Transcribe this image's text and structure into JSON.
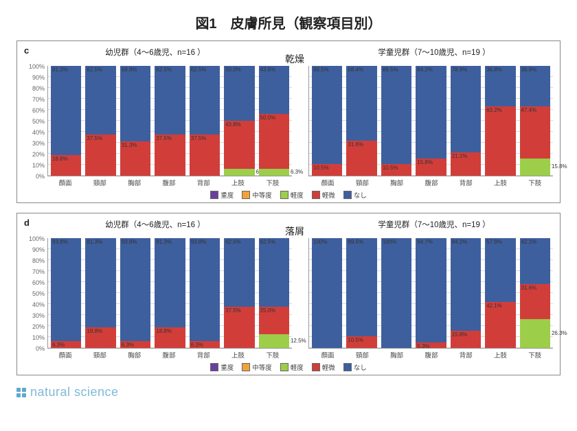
{
  "title": "図1　皮膚所見（観察項目別）",
  "footer": "natural science",
  "colors": {
    "severe": "#6b3fa0",
    "moderate": "#f2a23a",
    "mild": "#9cce4a",
    "slight": "#d13e3a",
    "none": "#3e5f9e",
    "grid": "#d8d8d8",
    "border": "#888888",
    "bg": "#ffffff"
  },
  "legend": [
    {
      "key": "severe",
      "label": "重度"
    },
    {
      "key": "moderate",
      "label": "中等度"
    },
    {
      "key": "mild",
      "label": "軽度"
    },
    {
      "key": "slight",
      "label": "軽微"
    },
    {
      "key": "none",
      "label": "なし"
    }
  ],
  "axis": {
    "ylim": [
      0,
      100
    ],
    "ystep": 10,
    "ylabel_suffix": "%",
    "tick_fontsize": 9
  },
  "categories_jp": [
    "顔面",
    "頸部",
    "胸部",
    "腹部",
    "背部",
    "上肢",
    "下肢"
  ],
  "panels": [
    {
      "id": "c",
      "center": "乾燥",
      "left_title": "幼児群（4～6歳児、n=16 ）",
      "right_title": "学童児群（7～10歳児、n=19 ）",
      "left": [
        {
          "cat": "顔面",
          "segs": [
            {
              "k": "slight",
              "v": 18.8,
              "lb": "18.8%",
              "pos": "inside-top"
            },
            {
              "k": "none",
              "v": 81.3,
              "lb": "81.3%",
              "pos": "inside-top"
            }
          ]
        },
        {
          "cat": "頸部",
          "segs": [
            {
              "k": "slight",
              "v": 37.5,
              "lb": "37.5%",
              "pos": "inside-top"
            },
            {
              "k": "none",
              "v": 62.5,
              "lb": "62.5%",
              "pos": "inside-top"
            }
          ]
        },
        {
          "cat": "胸部",
          "segs": [
            {
              "k": "slight",
              "v": 31.3,
              "lb": "31.3%",
              "pos": "inside-top"
            },
            {
              "k": "none",
              "v": 68.8,
              "lb": "68.8%",
              "pos": "inside-top"
            }
          ]
        },
        {
          "cat": "腹部",
          "segs": [
            {
              "k": "slight",
              "v": 37.5,
              "lb": "37.5%",
              "pos": "inside-top"
            },
            {
              "k": "none",
              "v": 62.5,
              "lb": "62.5%",
              "pos": "inside-top"
            }
          ]
        },
        {
          "cat": "背部",
          "segs": [
            {
              "k": "slight",
              "v": 37.5,
              "lb": "37.5%",
              "pos": "inside-top"
            },
            {
              "k": "none",
              "v": 62.5,
              "lb": "62.5%",
              "pos": "inside-top"
            }
          ]
        },
        {
          "cat": "上肢",
          "segs": [
            {
              "k": "mild",
              "v": 6.3,
              "lb": "6.3%",
              "pos": "right"
            },
            {
              "k": "slight",
              "v": 43.8,
              "lb": "43.8%",
              "pos": "inside-top"
            },
            {
              "k": "none",
              "v": 50.0,
              "lb": "50.0%",
              "pos": "inside-top"
            }
          ]
        },
        {
          "cat": "下肢",
          "segs": [
            {
              "k": "mild",
              "v": 6.3,
              "lb": "6.3%",
              "pos": "right"
            },
            {
              "k": "slight",
              "v": 50.0,
              "lb": "50.0%",
              "pos": "inside-top"
            },
            {
              "k": "none",
              "v": 43.8,
              "lb": "43.8%",
              "pos": "inside-top"
            }
          ]
        }
      ],
      "right": [
        {
          "cat": "顔面",
          "segs": [
            {
              "k": "slight",
              "v": 10.5,
              "lb": "10.5%",
              "pos": "inside-top"
            },
            {
              "k": "none",
              "v": 89.5,
              "lb": "89.5%",
              "pos": "inside-top"
            }
          ]
        },
        {
          "cat": "頸部",
          "segs": [
            {
              "k": "slight",
              "v": 31.6,
              "lb": "31.6%",
              "pos": "inside-top"
            },
            {
              "k": "none",
              "v": 68.4,
              "lb": "68.4%",
              "pos": "inside-top"
            }
          ]
        },
        {
          "cat": "胸部",
          "segs": [
            {
              "k": "slight",
              "v": 10.5,
              "lb": "10.5%",
              "pos": "inside-top"
            },
            {
              "k": "none",
              "v": 89.5,
              "lb": "89.5%",
              "pos": "inside-top"
            }
          ]
        },
        {
          "cat": "腹部",
          "segs": [
            {
              "k": "slight",
              "v": 15.8,
              "lb": "15.8%",
              "pos": "inside-top"
            },
            {
              "k": "none",
              "v": 84.2,
              "lb": "84.2%",
              "pos": "inside-top"
            }
          ]
        },
        {
          "cat": "背部",
          "segs": [
            {
              "k": "slight",
              "v": 21.1,
              "lb": "21.1%",
              "pos": "inside-top"
            },
            {
              "k": "none",
              "v": 78.9,
              "lb": "78.9%",
              "pos": "inside-top"
            }
          ]
        },
        {
          "cat": "上肢",
          "segs": [
            {
              "k": "slight",
              "v": 63.2,
              "lb": "63.2%",
              "pos": "inside-top"
            },
            {
              "k": "none",
              "v": 36.8,
              "lb": "36.8%",
              "pos": "inside-top"
            }
          ]
        },
        {
          "cat": "下肢",
          "segs": [
            {
              "k": "mild",
              "v": 15.8,
              "lb": "15.8%",
              "pos": "right"
            },
            {
              "k": "slight",
              "v": 47.4,
              "lb": "47.4%",
              "pos": "inside-top"
            },
            {
              "k": "none",
              "v": 36.8,
              "lb": "36.8%",
              "pos": "inside-top"
            }
          ]
        }
      ]
    },
    {
      "id": "d",
      "center": "落屑",
      "left_title": "幼児群（4～6歳児、n=16 ）",
      "right_title": "学童児群（7～10歳児、n=19 ）",
      "left": [
        {
          "cat": "顔面",
          "segs": [
            {
              "k": "slight",
              "v": 6.3,
              "lb": "6.3%",
              "pos": "inside-top"
            },
            {
              "k": "none",
              "v": 93.8,
              "lb": "93.8%",
              "pos": "inside-top"
            }
          ]
        },
        {
          "cat": "頸部",
          "segs": [
            {
              "k": "slight",
              "v": 18.8,
              "lb": "18.8%",
              "pos": "inside-top"
            },
            {
              "k": "none",
              "v": 81.3,
              "lb": "81.3%",
              "pos": "inside-top"
            }
          ]
        },
        {
          "cat": "胸部",
          "segs": [
            {
              "k": "slight",
              "v": 6.3,
              "lb": "6.3%",
              "pos": "inside-top"
            },
            {
              "k": "none",
              "v": 93.8,
              "lb": "93.8%",
              "pos": "inside-top"
            }
          ]
        },
        {
          "cat": "腹部",
          "segs": [
            {
              "k": "slight",
              "v": 18.8,
              "lb": "18.8%",
              "pos": "inside-top"
            },
            {
              "k": "none",
              "v": 81.3,
              "lb": "81.3%",
              "pos": "inside-top"
            }
          ]
        },
        {
          "cat": "背部",
          "segs": [
            {
              "k": "slight",
              "v": 6.3,
              "lb": "6.3%",
              "pos": "inside-top"
            },
            {
              "k": "none",
              "v": 93.8,
              "lb": "93.8%",
              "pos": "inside-top"
            }
          ]
        },
        {
          "cat": "上肢",
          "segs": [
            {
              "k": "slight",
              "v": 37.5,
              "lb": "37.5%",
              "pos": "inside-top"
            },
            {
              "k": "none",
              "v": 62.5,
              "lb": "62.5%",
              "pos": "inside-top"
            }
          ]
        },
        {
          "cat": "下肢",
          "segs": [
            {
              "k": "mild",
              "v": 12.5,
              "lb": "12.5%",
              "pos": "right"
            },
            {
              "k": "slight",
              "v": 25.0,
              "lb": "25.0%",
              "pos": "inside-top"
            },
            {
              "k": "none",
              "v": 62.5,
              "lb": "62.5%",
              "pos": "inside-top"
            }
          ]
        }
      ],
      "right": [
        {
          "cat": "顔面",
          "segs": [
            {
              "k": "none",
              "v": 100,
              "lb": "100%",
              "pos": "inside-top"
            }
          ]
        },
        {
          "cat": "頸部",
          "segs": [
            {
              "k": "slight",
              "v": 10.5,
              "lb": "10.5%",
              "pos": "inside-top"
            },
            {
              "k": "none",
              "v": 89.5,
              "lb": "89.5%",
              "pos": "inside-top"
            }
          ]
        },
        {
          "cat": "胸部",
          "segs": [
            {
              "k": "none",
              "v": 100,
              "lb": "100%",
              "pos": "inside-top"
            }
          ]
        },
        {
          "cat": "腹部",
          "segs": [
            {
              "k": "slight",
              "v": 5.3,
              "lb": "5.3%",
              "pos": "inside-top"
            },
            {
              "k": "none",
              "v": 94.7,
              "lb": "94.7%",
              "pos": "inside-top"
            }
          ]
        },
        {
          "cat": "背部",
          "segs": [
            {
              "k": "slight",
              "v": 15.8,
              "lb": "15.8%",
              "pos": "inside-top"
            },
            {
              "k": "none",
              "v": 84.2,
              "lb": "84.2%",
              "pos": "inside-top"
            }
          ]
        },
        {
          "cat": "上肢",
          "segs": [
            {
              "k": "slight",
              "v": 42.1,
              "lb": "42.1%",
              "pos": "inside-top"
            },
            {
              "k": "none",
              "v": 57.9,
              "lb": "57.9%",
              "pos": "inside-top"
            }
          ]
        },
        {
          "cat": "下肢",
          "segs": [
            {
              "k": "mild",
              "v": 26.3,
              "lb": "26.3%",
              "pos": "right"
            },
            {
              "k": "slight",
              "v": 31.6,
              "lb": "31.6%",
              "pos": "inside-top"
            },
            {
              "k": "none",
              "v": 42.1,
              "lb": "42.1%",
              "pos": "inside-top"
            }
          ]
        }
      ]
    }
  ]
}
